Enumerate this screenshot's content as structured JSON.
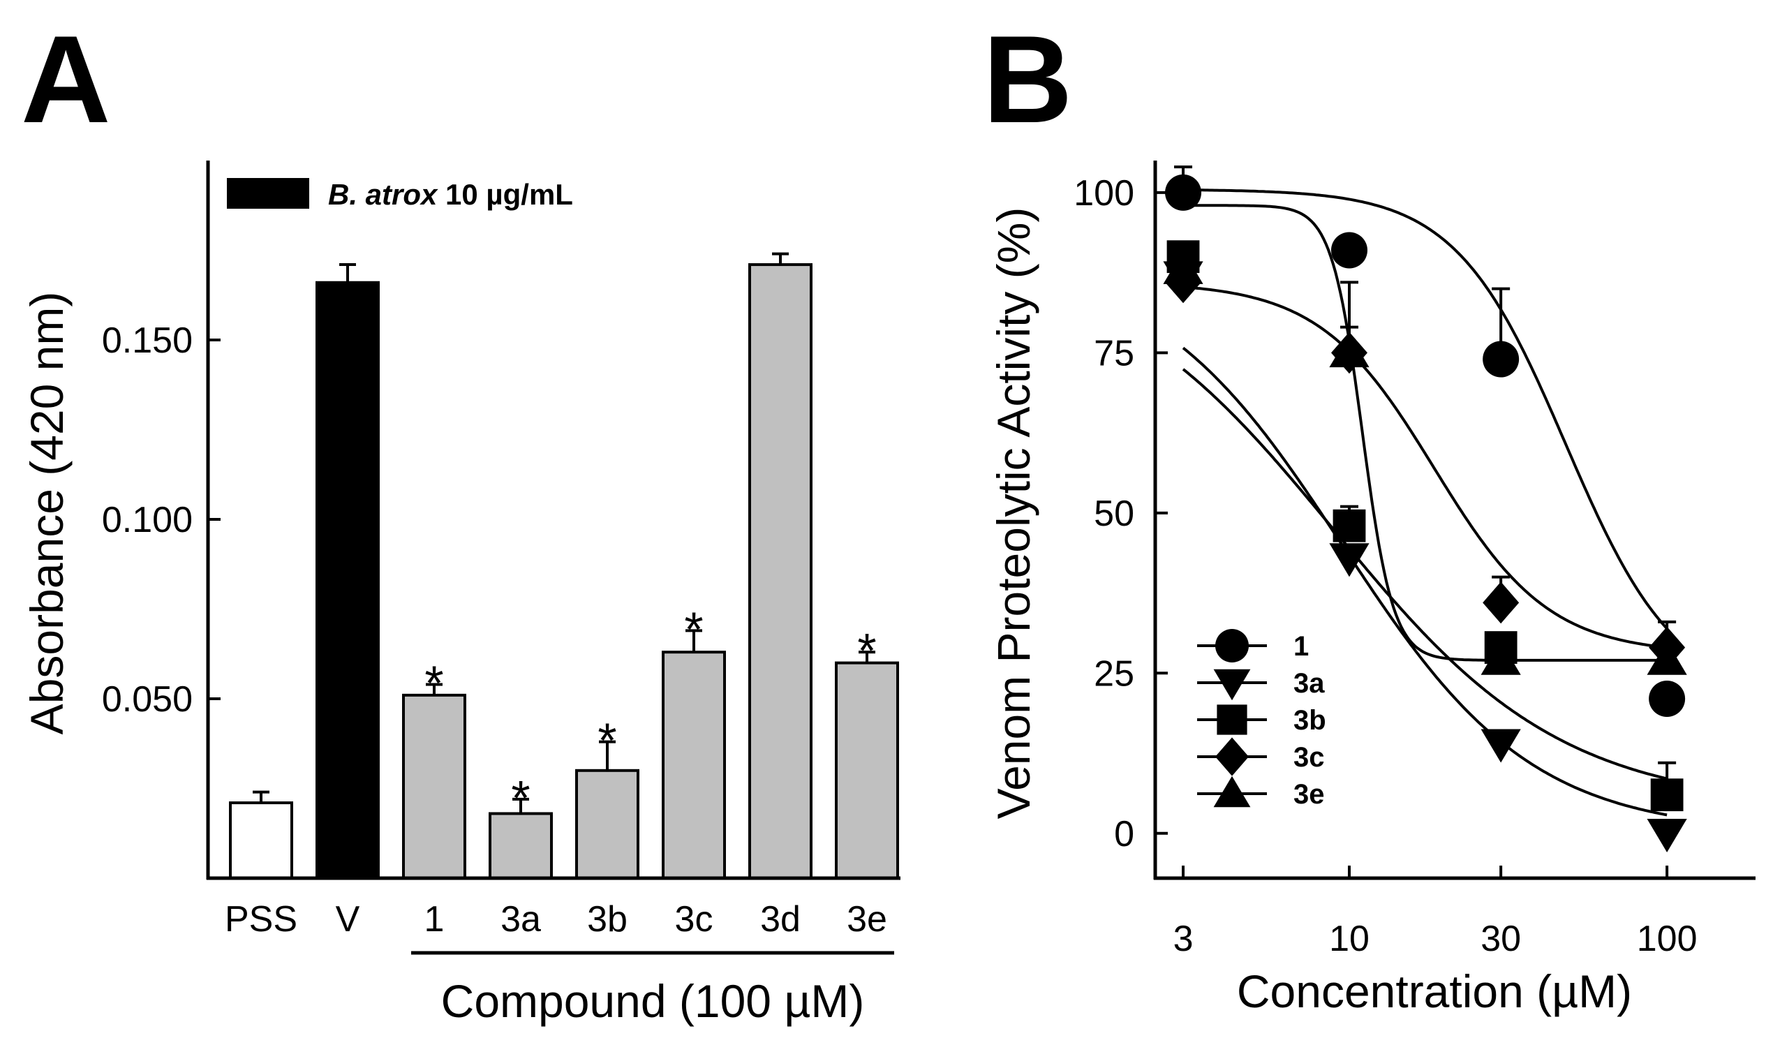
{
  "figure": {
    "panel_a_letter": "A",
    "panel_b_letter": "B"
  },
  "chart_data": [
    {
      "panel": "A",
      "type": "bar",
      "ylabel": "Absorbance (420 nm)",
      "xlabel": "Compound (100 µM)",
      "ylim": [
        0,
        0.2
      ],
      "yticks": [
        "0.050",
        "0.100",
        "0.150"
      ],
      "ytick_values": [
        0.05,
        0.1,
        0.15
      ],
      "legend": {
        "italic": "B. atrox",
        "rest": " 10 µg/mL",
        "color": "#000000"
      },
      "categories": [
        "PSS",
        "V",
        "1",
        "3a",
        "3b",
        "3c",
        "3d",
        "3e"
      ],
      "values": [
        0.021,
        0.166,
        0.051,
        0.018,
        0.03,
        0.063,
        0.171,
        0.06
      ],
      "errors": [
        0.003,
        0.005,
        0.003,
        0.004,
        0.008,
        0.006,
        0.003,
        0.003
      ],
      "significance": [
        "",
        "",
        "*",
        "*",
        "*",
        "*",
        "",
        "*"
      ],
      "fills": [
        "#ffffff",
        "#000000",
        "#c0c0c0",
        "#c0c0c0",
        "#c0c0c0",
        "#c0c0c0",
        "#c0c0c0",
        "#c0c0c0"
      ]
    },
    {
      "panel": "B",
      "type": "line",
      "xscale": "log",
      "xlabel": "Concentration (µM)",
      "ylabel": "Venom Proteolytic Activity (%)",
      "ylim": [
        -7,
        105
      ],
      "xticks": [
        "3",
        "10",
        "30",
        "100"
      ],
      "xtick_values": [
        3,
        10,
        30,
        100
      ],
      "yticks": [
        "0",
        "25",
        "50",
        "75",
        "100"
      ],
      "ytick_values": [
        0,
        25,
        50,
        75,
        100
      ],
      "x": [
        3,
        10,
        30,
        100
      ],
      "series": [
        {
          "name": "1",
          "marker": "circle",
          "values": [
            100,
            91,
            74,
            21
          ],
          "errors": [
            4,
            2,
            11,
            2
          ],
          "fit": {
            "top": 100.5,
            "bottom": 21,
            "ec50": 48,
            "hill": 2.5
          }
        },
        {
          "name": "3a",
          "marker": "triangle-down",
          "values": [
            87,
            43,
            14,
            0
          ],
          "errors": [
            2,
            2,
            2,
            1
          ],
          "fit": {
            "top": 90,
            "bottom": 0,
            "ec50": 9.5,
            "hill": 1.45
          }
        },
        {
          "name": "3b",
          "marker": "square",
          "values": [
            90,
            48,
            29,
            6
          ],
          "errors": [
            2,
            3,
            2,
            5
          ],
          "fit": {
            "top": 91,
            "bottom": 4,
            "ec50": 8.9,
            "hill": 1.2
          }
        },
        {
          "name": "3c",
          "marker": "diamond",
          "values": [
            86,
            75,
            36,
            29
          ],
          "errors": [
            2,
            4,
            4,
            4
          ],
          "fit": {
            "top": 86,
            "bottom": 28,
            "ec50": 18.5,
            "hill": 2.4
          }
        },
        {
          "name": "3e",
          "marker": "triangle-up",
          "values": [
            88,
            75,
            27,
            27
          ],
          "errors": [
            2,
            11,
            2,
            3
          ],
          "fit": {
            "top": 98,
            "bottom": 27,
            "ec50": 11,
            "hill": 9
          }
        }
      ]
    }
  ]
}
